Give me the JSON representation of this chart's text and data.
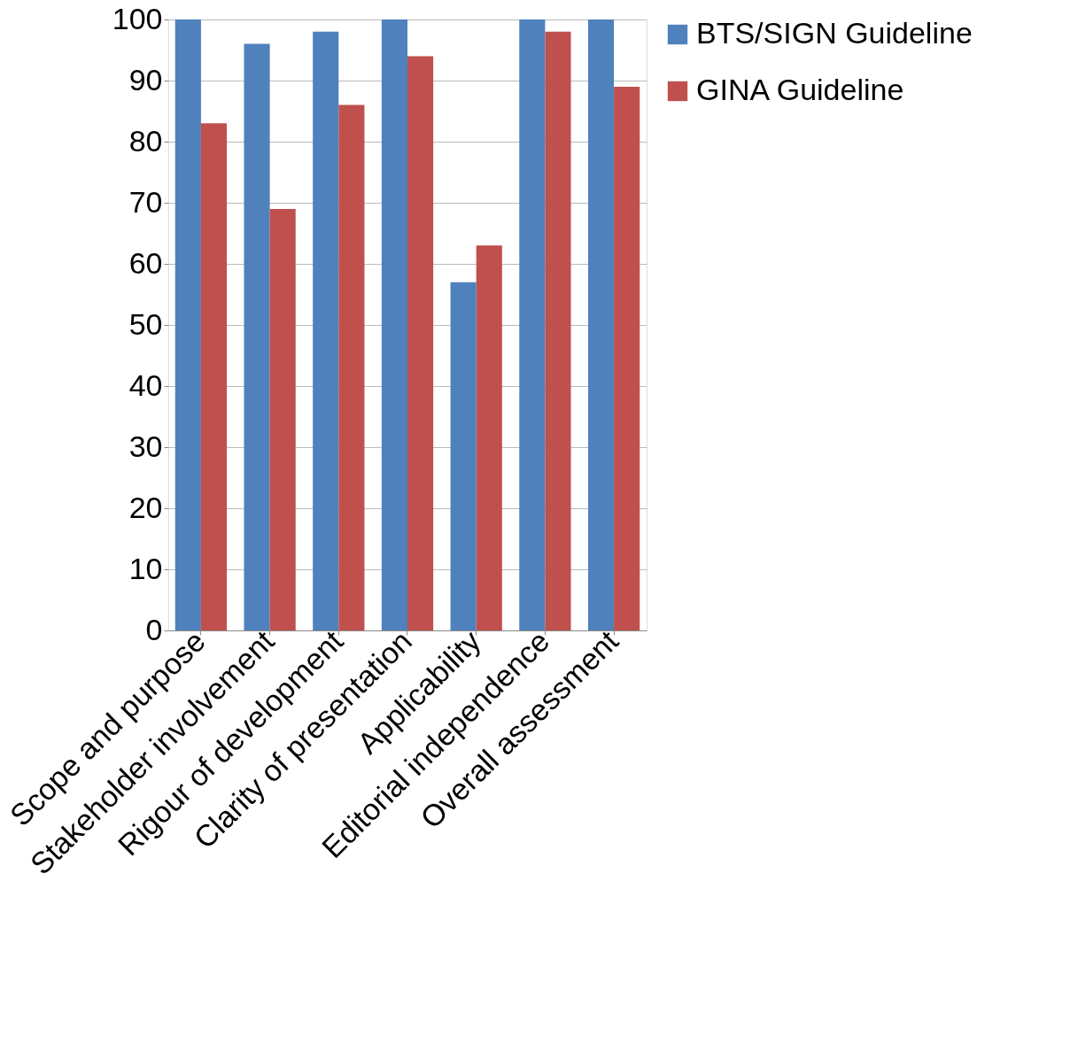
{
  "chart_data": {
    "type": "bar",
    "categories": [
      "Scope and purpose",
      "Stakeholder involvement",
      "Rigour of development",
      "Clarity of presentation",
      "Applicability",
      "Editorial independence",
      "Overall assessment"
    ],
    "series": [
      {
        "name": "BTS/SIGN Guideline",
        "color": "#4f81bd",
        "values": [
          100,
          96,
          98,
          100,
          57,
          100,
          100
        ]
      },
      {
        "name": "GINA Guideline",
        "color": "#c0504d",
        "values": [
          83,
          69,
          86,
          94,
          63,
          98,
          89
        ]
      }
    ],
    "ylim": [
      0,
      100
    ],
    "yticks": [
      0,
      10,
      20,
      30,
      40,
      50,
      60,
      70,
      80,
      90,
      100
    ],
    "grid": "y",
    "legend": "right"
  }
}
